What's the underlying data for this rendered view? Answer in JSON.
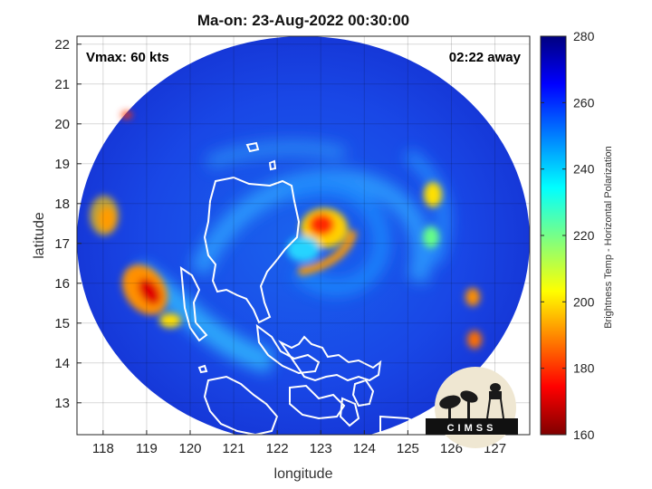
{
  "title": "Ma-on: 23-Aug-2022 00:30:00",
  "annotations": {
    "vmax": "Vmax: 60 kts",
    "away": "02:22 away"
  },
  "logo_text": "CIMSS",
  "colorbar": {
    "label": "Brightness Temp - Horizontal Polarization",
    "ticks": [
      "280",
      "260",
      "240",
      "220",
      "200",
      "180",
      "160"
    ],
    "min": 160,
    "max": 280,
    "colormap": "jet"
  },
  "chart_data": {
    "type": "heatmap",
    "title": "Ma-on: 23-Aug-2022 00:30:00",
    "xlabel": "longitude",
    "ylabel": "latitude",
    "xlim": [
      117.4,
      127.8
    ],
    "ylim": [
      12.2,
      22.2
    ],
    "xticks": [
      118,
      119,
      120,
      121,
      122,
      123,
      124,
      125,
      126,
      127
    ],
    "yticks": [
      13,
      14,
      15,
      16,
      17,
      18,
      19,
      20,
      21,
      22
    ],
    "grid": true,
    "storm_center": {
      "lon": 123.0,
      "lat": 17.4
    },
    "colorbar_range": [
      160,
      280
    ]
  }
}
